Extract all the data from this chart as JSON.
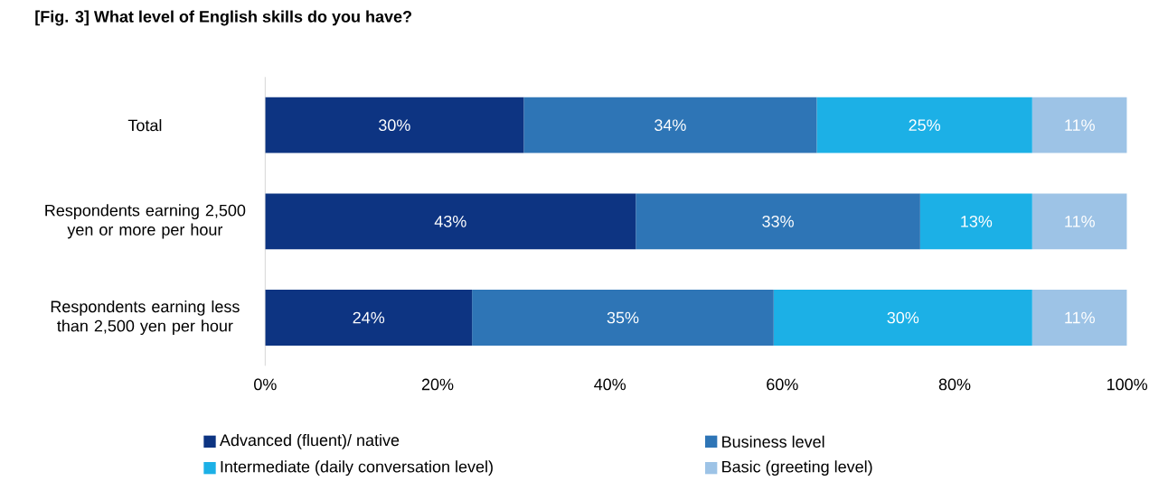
{
  "chart_data": {
    "type": "bar",
    "orientation": "horizontal",
    "stacked": true,
    "title": "[Fig. 3] What level of English skills do you have?",
    "categories": [
      "Total",
      "Respondents earning 2,500 yen or more per hour",
      "Respondents earning less than 2,500 yen per hour"
    ],
    "series": [
      {
        "name": "Advanced (fluent)/ native",
        "color": "#0d3482",
        "values": [
          30,
          43,
          24
        ],
        "value_labels": [
          "30%",
          "43%",
          "24%"
        ]
      },
      {
        "name": "Business level",
        "color": "#2e75b6",
        "values": [
          34,
          33,
          35
        ],
        "value_labels": [
          "34%",
          "33%",
          "35%"
        ]
      },
      {
        "name": "Intermediate (daily conversation level)",
        "color": "#1cb0e6",
        "values": [
          25,
          13,
          30
        ],
        "value_labels": [
          "25%",
          "13%",
          "30%"
        ]
      },
      {
        "name": "Basic (greeting level)",
        "color": "#9dc3e6",
        "values": [
          11,
          11,
          11
        ],
        "value_labels": [
          "11%",
          "11%",
          "11%"
        ]
      }
    ],
    "xlim": [
      0,
      100
    ],
    "xticks": [
      {
        "value": 0,
        "label": "0%"
      },
      {
        "value": 20,
        "label": "20%"
      },
      {
        "value": 40,
        "label": "40%"
      },
      {
        "value": 60,
        "label": "60%"
      },
      {
        "value": 80,
        "label": "80%"
      },
      {
        "value": 100,
        "label": "100%"
      }
    ],
    "legend": "bottom"
  }
}
